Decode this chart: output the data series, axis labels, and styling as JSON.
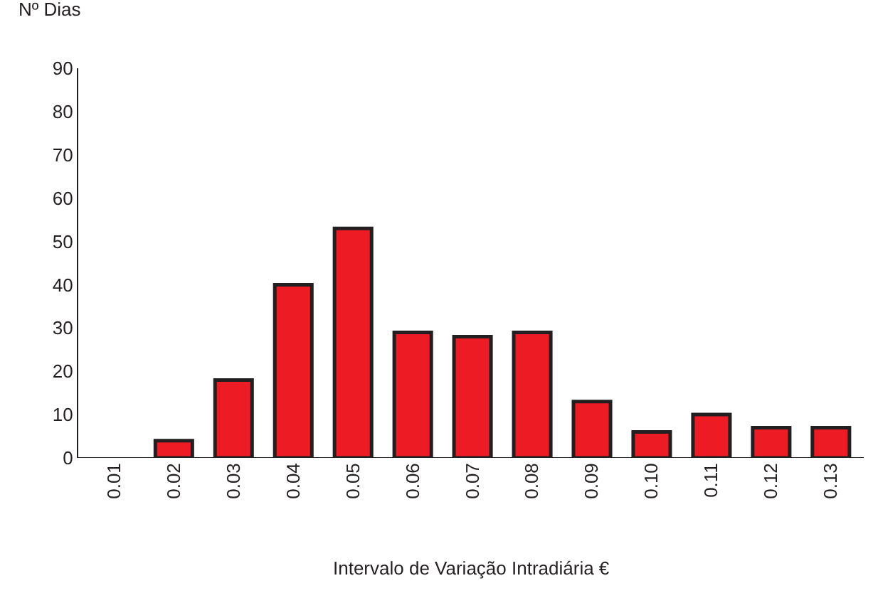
{
  "chart_data": {
    "type": "bar",
    "ylabel": "Nº Dias",
    "xlabel": "Intervalo de Variação Intradiária €",
    "categories": [
      "0.01",
      "0.02",
      "0.03",
      "0.04",
      "0.05",
      "0.06",
      "0.07",
      "0.08",
      "0.09",
      "0.10",
      "0.11",
      "0.12",
      "0.13"
    ],
    "values": [
      0,
      4,
      18,
      40,
      53,
      29,
      28,
      29,
      13,
      6,
      10,
      7,
      7
    ],
    "color": "#ed1c24",
    "ylim": [
      0,
      90
    ],
    "yticks": [
      0,
      10,
      20,
      30,
      40,
      50,
      60,
      70,
      80,
      90
    ]
  }
}
